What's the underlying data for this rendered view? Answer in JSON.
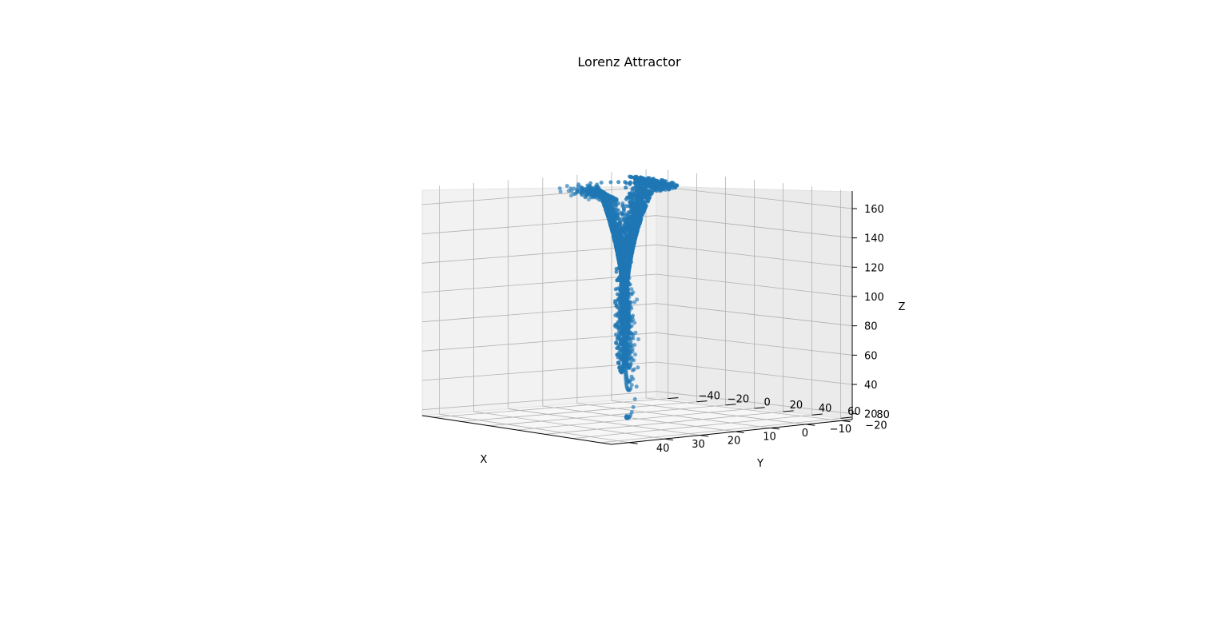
{
  "chart_data": {
    "type": "scatter",
    "projection": "3d",
    "title": "Lorenz Attractor",
    "xlabel": "X",
    "ylabel": "Y",
    "zlabel": "Z",
    "x_ticks": [
      40,
      30,
      20,
      10,
      0,
      -10,
      -20
    ],
    "y_ticks": [
      80,
      60,
      40,
      20,
      0,
      -20,
      -40
    ],
    "z_ticks": [
      20,
      40,
      60,
      80,
      100,
      120,
      140,
      160
    ],
    "x_tick_labels": [
      "40",
      "30",
      "20",
      "10",
      "0",
      "−10",
      "−20"
    ],
    "y_tick_labels": [
      "80",
      "60",
      "40",
      "20",
      "0",
      "−20",
      "−40"
    ],
    "z_tick_labels": [
      "20",
      "40",
      "60",
      "80",
      "100",
      "120",
      "140",
      "160"
    ],
    "xlim": [
      -23,
      45
    ],
    "ylim": [
      -48,
      88
    ],
    "zlim": [
      16,
      172
    ],
    "grid": true,
    "marker": "o",
    "color": "#1f77b4",
    "series": [
      {
        "points_source": "Lorenz system, sigma 10, rho 28, beta 8/3, time step 0.01, with one coordinate scaled by about 4.8 to match the printed axis spans; dense trajectory drawn as overlapping markers",
        "points": [
          [
            13,
            68,
            17
          ],
          [
            26,
            57,
            16
          ],
          [
            39,
            42,
            78
          ],
          [
            33,
            66,
            130
          ],
          [
            -3,
            54,
            140
          ],
          [
            -7,
            38,
            128
          ],
          [
            -8,
            10,
            110
          ],
          [
            -5,
            -25,
            100
          ],
          [
            -10,
            -40,
            130
          ],
          [
            -18,
            -30,
            150
          ],
          [
            -23,
            10,
            145
          ],
          [
            22,
            45,
            95
          ],
          [
            10,
            30,
            85
          ],
          [
            -5,
            -10,
            90
          ]
        ]
      }
    ]
  },
  "colors": {
    "marker": "#1f77b4",
    "pane": "#f2f2f2",
    "grid": "#b0b0b0"
  }
}
